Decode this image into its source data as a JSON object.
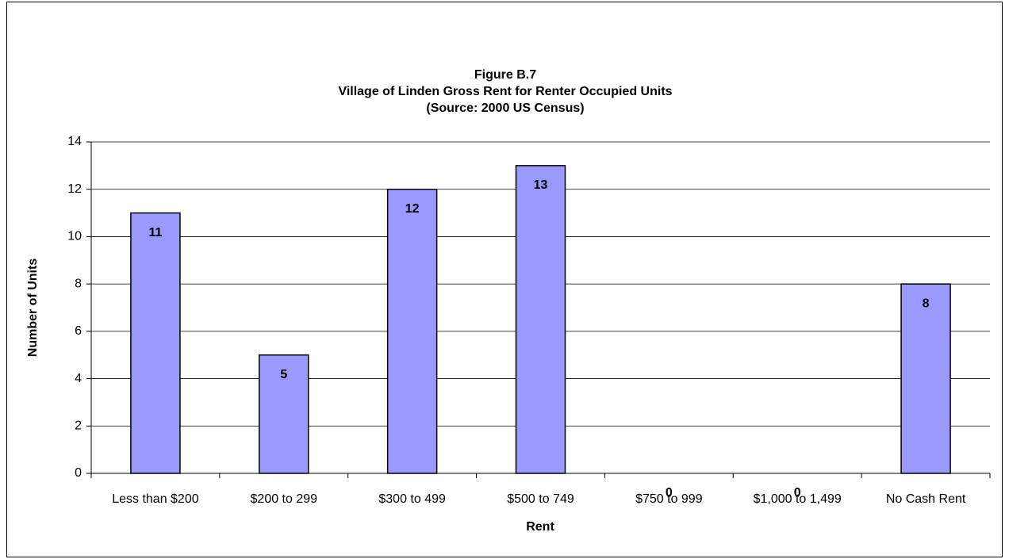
{
  "chart_data": {
    "type": "bar",
    "title": [
      "Figure B.7",
      "Village of Linden Gross Rent for Renter Occupied Units",
      "(Source:  2000 US Census)"
    ],
    "x_label": "Rent",
    "y_label": "Number of Units",
    "categories": [
      "Less than $200",
      "$200 to 299",
      "$300 to 499",
      "$500 to 749",
      "$750 to 999",
      "$1,000 to 1,499",
      "No Cash Rent"
    ],
    "values": [
      11,
      5,
      12,
      13,
      0,
      0,
      8
    ],
    "color": "#9999ff",
    "ylim": [
      0,
      14
    ],
    "yticks": [
      0,
      2,
      4,
      6,
      8,
      10,
      12,
      14
    ],
    "grid": true
  }
}
